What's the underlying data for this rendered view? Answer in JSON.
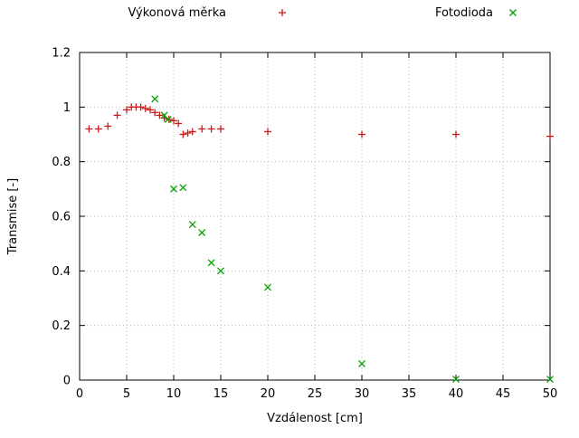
{
  "chart_data": {
    "type": "scatter",
    "title": "",
    "xlabel": "Vzdálenost [cm]",
    "ylabel": "Transmise [-]",
    "xlim": [
      0,
      50
    ],
    "ylim": [
      0,
      1.2
    ],
    "xticks": [
      0,
      5,
      10,
      15,
      20,
      25,
      30,
      35,
      40,
      45,
      50
    ],
    "yticks": [
      0,
      0.2,
      0.4,
      0.6,
      0.8,
      1,
      1.2
    ],
    "grid": true,
    "grid_color": "#b5b5b5",
    "border_color": "#000000",
    "legend_position": "top-horizontal",
    "series": [
      {
        "name": "Výkonová měrka",
        "marker": "plus",
        "color": "#cc1a1a",
        "points": [
          [
            1,
            0.92
          ],
          [
            2,
            0.92
          ],
          [
            3,
            0.93
          ],
          [
            4,
            0.97
          ],
          [
            5,
            0.99
          ],
          [
            5.5,
            1.0
          ],
          [
            6,
            1.0
          ],
          [
            6.5,
            1.0
          ],
          [
            7,
            0.995
          ],
          [
            7.5,
            0.99
          ],
          [
            8,
            0.98
          ],
          [
            8.5,
            0.97
          ],
          [
            9,
            0.96
          ],
          [
            9.5,
            0.955
          ],
          [
            10,
            0.95
          ],
          [
            10.5,
            0.94
          ],
          [
            11,
            0.9
          ],
          [
            11.5,
            0.905
          ],
          [
            12,
            0.91
          ],
          [
            13,
            0.92
          ],
          [
            14,
            0.92
          ],
          [
            15,
            0.92
          ],
          [
            20,
            0.91
          ],
          [
            30,
            0.9
          ],
          [
            40,
            0.9
          ],
          [
            50,
            0.893
          ]
        ]
      },
      {
        "name": "Fotodioda",
        "marker": "cross",
        "color": "#00a000",
        "points": [
          [
            8,
            1.03
          ],
          [
            9,
            0.97
          ],
          [
            9.4,
            0.955
          ],
          [
            10,
            0.7
          ],
          [
            11,
            0.705
          ],
          [
            12,
            0.57
          ],
          [
            13,
            0.54
          ],
          [
            14,
            0.43
          ],
          [
            15,
            0.4
          ],
          [
            20,
            0.34
          ],
          [
            30,
            0.06
          ],
          [
            40,
            0.003
          ],
          [
            50,
            0.003
          ]
        ]
      }
    ]
  }
}
